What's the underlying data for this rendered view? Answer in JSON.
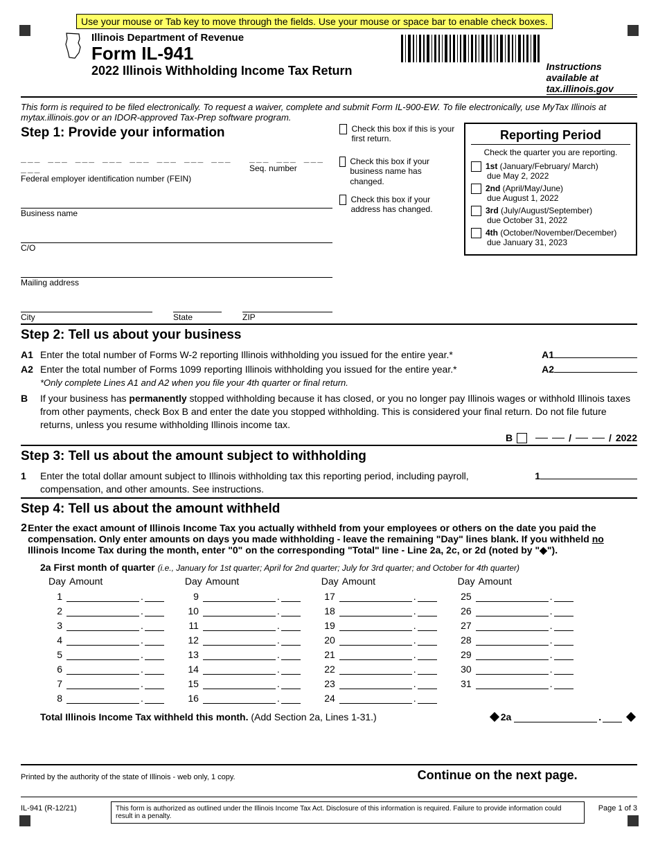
{
  "instr_banner": "Use your mouse or Tab key to move through the fields. Use your mouse or space bar to enable check boxes.",
  "header": {
    "dept": "Illinois Department of Revenue",
    "form": "Form IL-941",
    "subtitle": "2022 Illinois Withholding Income Tax Return",
    "instructions_link": "Instructions available at tax.illinois.gov"
  },
  "note": "This form is required to be filed electronically. To request a waiver, complete and submit Form IL-900-EW.  To file electronically, use MyTax Illinois at mytax.illinois.gov or an IDOR-approved Tax-Prep software program.",
  "step1": {
    "title": "Step 1:  Provide your information",
    "fein_label": "Federal employer identification number (FEIN)",
    "seq_label": "Seq. number",
    "business_label": "Business name",
    "co_label": "C/O",
    "mailing_label": "Mailing address",
    "city_label": "City",
    "state_label": "State",
    "zip_label": "ZIP",
    "fein_value": "",
    "seq_value": "",
    "business_value": "",
    "co_value": "",
    "mailing_value": "",
    "city_value": "",
    "state_value": "",
    "zip_value": "",
    "chk_first_return": "Check this box if this is your first return.",
    "chk_name_changed": "Check this box if your business name has changed.",
    "chk_addr_changed": "Check this box if your address has changed."
  },
  "reporting": {
    "title": "Reporting Period",
    "subtitle": "Check the quarter you are reporting.",
    "quarters": [
      {
        "label": "1st",
        "months": "(January/February/ March)",
        "due": "due May 2, 2022"
      },
      {
        "label": "2nd",
        "months": "(April/May/June)",
        "due": "due August 1, 2022"
      },
      {
        "label": "3rd",
        "months": "(July/August/September)",
        "due": "due October 31, 2022"
      },
      {
        "label": "4th",
        "months": "(October/November/December)",
        "due": "due January 31, 2023"
      }
    ]
  },
  "step2": {
    "title": "Step 2:  Tell us about your business",
    "a1": "Enter the total number of Forms W-2 reporting Illinois withholding you issued for the entire year.*",
    "a2": "Enter the total number of Forms 1099 reporting Illinois withholding you issued for the entire year.*",
    "a_note": "*Only complete Lines A1 and A2 when you file your 4th quarter or final return.",
    "b_pre": "If your business has ",
    "b_bold": "permanently",
    "b_post": " stopped withholding because it has closed, or you no longer pay Illinois wages or withhold Illinois taxes from other payments, check Box B and enter the date you stopped withholding. This is considered your final return. Do not file future returns, unless you resume withholding Illinois income tax.",
    "b_year": "2022"
  },
  "step3": {
    "title": "Step 3:  Tell us about the amount subject to withholding",
    "line1": "Enter the total dollar amount subject to Illinois withholding tax this reporting period, including payroll, compensation, and other amounts. See instructions."
  },
  "step4": {
    "title": "Step 4:  Tell us about the amount withheld",
    "line2_a": "Enter the exact amount of Illinois Income Tax you actually withheld from your employees or others on the date you paid the compensation.  Only enter amounts on days you made withholding - leave the remaining \"Day\" lines blank. If you withheld ",
    "line2_no": "no",
    "line2_b": " Illinois Income Tax during the month, enter \"0\" on the corresponding \"Total\" line - Line 2a, 2c, or 2d (noted by \"◆\").",
    "month_hdr_a": "2a  First month of quarter",
    "month_hdr_b": "(i.e., January for 1st quarter; April for 2nd quarter; July for 3rd quarter; and October for 4th quarter)",
    "col_day": "Day",
    "col_amt": "Amount",
    "total_label": "Total Illinois Income Tax withheld this month.",
    "total_paren": "(Add Section 2a, Lines 1-31.)",
    "total_tag": "2a"
  },
  "footer": {
    "printed": "Printed by the authority of the state of Illinois - web only, 1 copy.",
    "continue": "Continue on the next page.",
    "form_rev": "IL-941 (R-12/21)",
    "auth_text": "This form is authorized as outlined under the Illinois Income Tax Act.  Disclosure of this information is required. Failure to provide information could result in a penalty.",
    "page": "Page 1 of 3"
  },
  "colors": {
    "banner_bg": "#ffff66",
    "text": "#000000",
    "bg": "#ffffff"
  }
}
